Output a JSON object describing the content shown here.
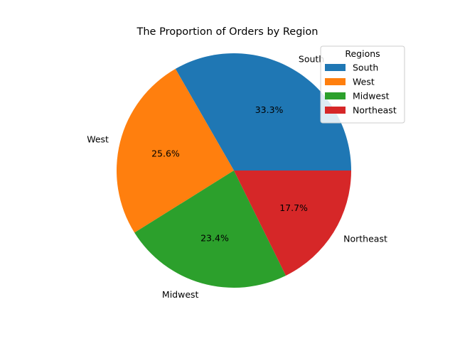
{
  "chart_data": {
    "type": "pie",
    "title": "The Proportion of Orders by Region",
    "start_angle_deg": 0,
    "direction": "counterclockwise",
    "slices": [
      {
        "label": "South",
        "value": 33.3,
        "pct_label": "33.3%",
        "color": "#1f77b4"
      },
      {
        "label": "West",
        "value": 25.6,
        "pct_label": "25.6%",
        "color": "#ff7f0e"
      },
      {
        "label": "Midwest",
        "value": 23.4,
        "pct_label": "23.4%",
        "color": "#2ca02c"
      },
      {
        "label": "Northeast",
        "value": 17.7,
        "pct_label": "17.7%",
        "color": "#d62728"
      }
    ],
    "legend": {
      "title": "Regions",
      "placement": "upper right",
      "entries": [
        "South",
        "West",
        "Midwest",
        "Northeast"
      ]
    }
  }
}
